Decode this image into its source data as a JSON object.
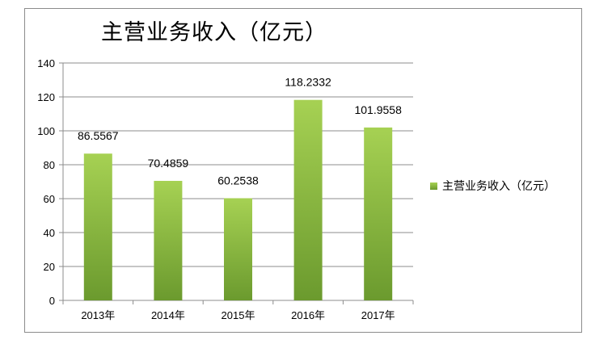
{
  "chart_data": {
    "type": "bar",
    "title": "主营业务收入（亿元）",
    "categories": [
      "2013年",
      "2014年",
      "2015年",
      "2016年",
      "2017年"
    ],
    "series": [
      {
        "name": "主营业务收入（亿元）",
        "values": [
          86.5567,
          70.4859,
          60.2538,
          118.2332,
          101.9558
        ],
        "labels": [
          "86.5567",
          "70.4859",
          "60.2538",
          "118.2332",
          "101.9558"
        ]
      }
    ],
    "ylim": [
      0,
      140
    ],
    "yticks": [
      0,
      20,
      40,
      60,
      80,
      100,
      120,
      140
    ],
    "grid": true,
    "legend_position": "right"
  },
  "colors": {
    "bar_top": "#a6d153",
    "bar_bottom": "#6b9a2e",
    "grid": "#8c8c8c"
  }
}
